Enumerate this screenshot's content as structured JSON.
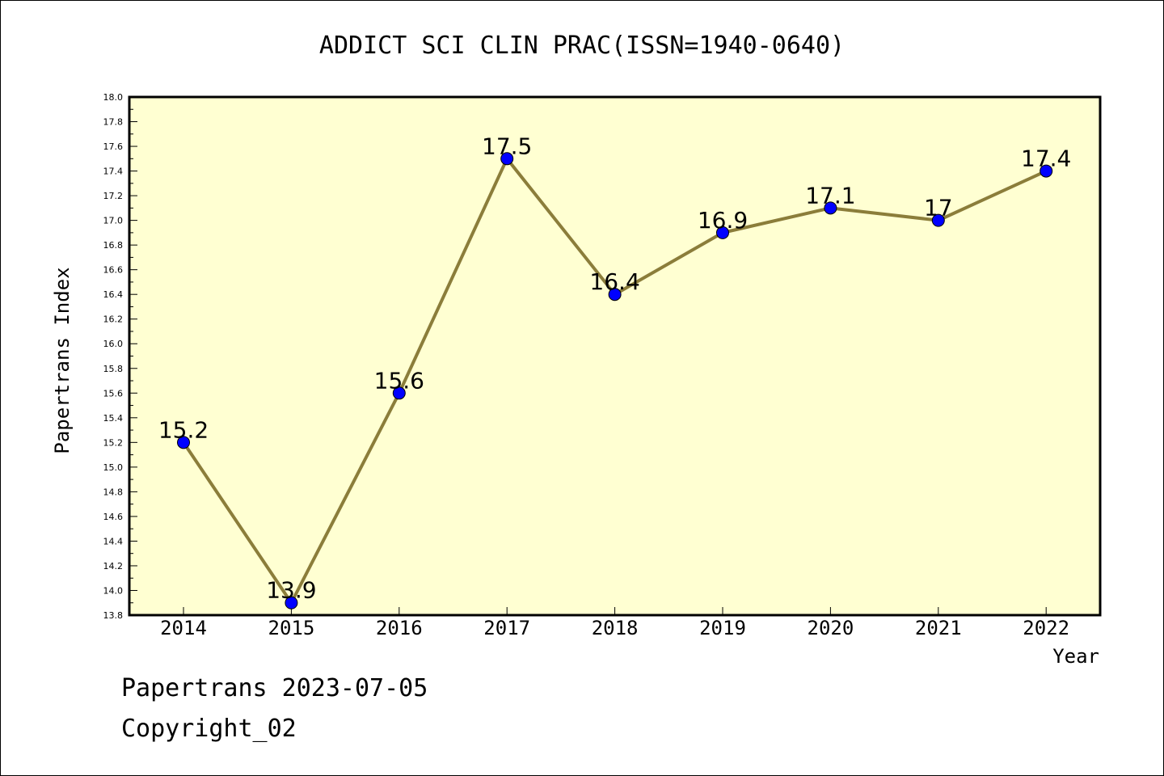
{
  "chart_data": {
    "type": "line",
    "title": "ADDICT SCI CLIN PRAC(ISSN=1940-0640)",
    "xlabel": "Year",
    "ylabel": "Papertrans Index",
    "categories": [
      "2014",
      "2015",
      "2016",
      "2017",
      "2018",
      "2019",
      "2020",
      "2021",
      "2022"
    ],
    "values": [
      15.2,
      13.9,
      15.6,
      17.5,
      16.4,
      16.9,
      17.1,
      17.0,
      17.4
    ],
    "data_labels": [
      "15.2",
      "13.9",
      "15.6",
      "17.5",
      "16.4",
      "16.9",
      "17.1",
      "17",
      "17.4"
    ],
    "ylim": [
      13.8,
      18.0
    ],
    "y_ticks": [
      "13.8",
      "14.0",
      "14.2",
      "14.4",
      "14.6",
      "14.8",
      "15.0",
      "15.2",
      "15.4",
      "15.6",
      "15.8",
      "16.0",
      "16.2",
      "16.4",
      "16.6",
      "16.8",
      "17.0",
      "17.2",
      "17.4",
      "17.6",
      "17.8",
      "18.0"
    ],
    "grid": false,
    "colors": {
      "plot_background": "#ffffd2",
      "line": "#8b7d3a",
      "marker": "#0000ff"
    }
  },
  "footer": {
    "date_line": "Papertrans 2023-07-05",
    "copyright": "Copyright_02"
  }
}
